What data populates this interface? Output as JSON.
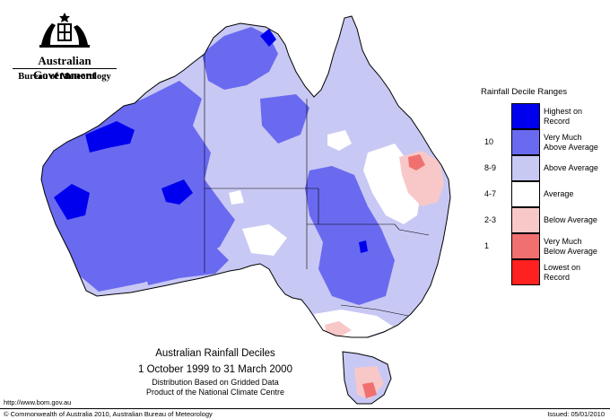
{
  "header": {
    "government": "Australian Government",
    "bureau": "Bureau of Meteorology"
  },
  "legend": {
    "title": "Rainfall Decile Ranges",
    "items": [
      {
        "decile": "",
        "label_lines": [
          "Highest on",
          "Record"
        ],
        "color": "#0000ee"
      },
      {
        "decile": "10",
        "label_lines": [
          "Very Much",
          "Above Average"
        ],
        "color": "#6a6af0"
      },
      {
        "decile": "8-9",
        "label_lines": [
          "Above Average"
        ],
        "color": "#c8c8f4"
      },
      {
        "decile": "4-7",
        "label_lines": [
          "Average"
        ],
        "color": "#ffffff"
      },
      {
        "decile": "2-3",
        "label_lines": [
          "Below Average"
        ],
        "color": "#f8c8c8"
      },
      {
        "decile": "1",
        "label_lines": [
          "Very Much",
          "Below Average"
        ],
        "color": "#f07070"
      },
      {
        "decile": "",
        "label_lines": [
          "Lowest on",
          "Record"
        ],
        "color": "#ff2020"
      }
    ]
  },
  "caption": {
    "title": "Australian Rainfall Deciles",
    "period": "1 October 1999 to 31 March 2000",
    "note_line1": "Distribution Based on Gridded Data",
    "note_line2": "Product of the National Climate Centre"
  },
  "footer": {
    "url": "http://www.bom.gov.au",
    "copyright": "© Commonwealth of Australia 2010, Australian Bureau of Meteorology",
    "issued": "Issued: 05/01/2010"
  },
  "colors": {
    "record_high": "#0000ee",
    "very_much_above": "#6a6af0",
    "above": "#c8c8f4",
    "average": "#ffffff",
    "below": "#f8c8c8",
    "very_much_below": "#f07070",
    "record_low": "#ff2020"
  }
}
